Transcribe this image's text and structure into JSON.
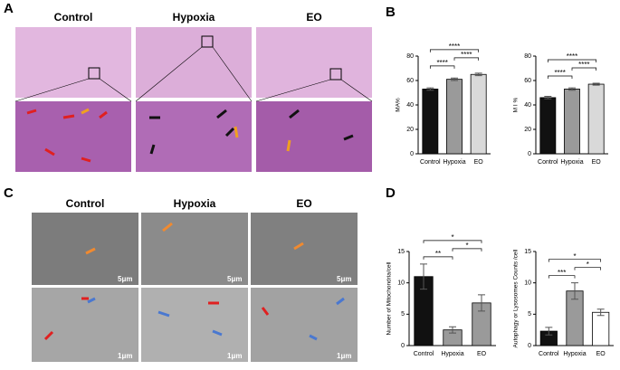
{
  "panel_labels": [
    "A",
    "B",
    "C",
    "D"
  ],
  "image_labels": {
    "a": [
      "Control",
      "Hypoxia",
      "EO"
    ],
    "c": [
      "Control",
      "Hypoxia",
      "EO"
    ]
  },
  "scale_labels": {
    "c_top": [
      "5μm",
      "5μm",
      "5μm"
    ],
    "c_bottom": [
      "1μm",
      "1μm",
      "1μm"
    ]
  },
  "chart_data": [
    {
      "type": "bar",
      "y_label": "MA%",
      "categories": [
        "Control",
        "Hypoxia",
        "EO"
      ],
      "values": [
        53,
        61,
        65
      ],
      "errors": [
        1,
        1,
        1
      ],
      "colors": [
        "#111111",
        "#9a9a9a",
        "#d9d9d9"
      ],
      "ylim": [
        0,
        80
      ],
      "yticks": [
        0,
        20,
        40,
        60,
        80
      ],
      "annotations": [
        {
          "label": "****",
          "between": [
            "Control",
            "Hypoxia"
          ]
        },
        {
          "label": "****",
          "between": [
            "Hypoxia",
            "EO"
          ]
        },
        {
          "label": "****",
          "between": [
            "Control",
            "EO"
          ]
        }
      ]
    },
    {
      "type": "bar",
      "y_label": "M I %",
      "categories": [
        "Control",
        "Hypoxia",
        "EO"
      ],
      "values": [
        46,
        53,
        57
      ],
      "errors": [
        1,
        1,
        0.8
      ],
      "colors": [
        "#111111",
        "#9a9a9a",
        "#d9d9d9"
      ],
      "ylim": [
        0,
        80
      ],
      "yticks": [
        0,
        20,
        40,
        60,
        80
      ],
      "annotations": [
        {
          "label": "****",
          "between": [
            "Control",
            "Hypoxia"
          ]
        },
        {
          "label": "****",
          "between": [
            "Hypoxia",
            "EO"
          ]
        },
        {
          "label": "****",
          "between": [
            "Control",
            "EO"
          ]
        }
      ]
    },
    {
      "type": "bar",
      "y_label": "Number of Mitochondria/cell",
      "categories": [
        "Control",
        "Hypoxia",
        "EO"
      ],
      "values": [
        11,
        2.5,
        6.8
      ],
      "errors": [
        2,
        0.5,
        1.3
      ],
      "colors": [
        "#111111",
        "#9a9a9a",
        "#9a9a9a"
      ],
      "ylim": [
        0,
        15
      ],
      "yticks": [
        0,
        5,
        10,
        15
      ],
      "annotations": [
        {
          "label": "**",
          "between": [
            "Control",
            "Hypoxia"
          ]
        },
        {
          "label": "*",
          "between": [
            "Hypoxia",
            "EO"
          ]
        },
        {
          "label": "*",
          "between": [
            "Control",
            "EO"
          ]
        }
      ]
    },
    {
      "type": "bar",
      "y_label": "Autophagy or Lysosomes Counts /cell",
      "categories": [
        "Control",
        "Hypoxia",
        "EO"
      ],
      "values": [
        2.3,
        8.7,
        5.3
      ],
      "errors": [
        0.6,
        1.3,
        0.5
      ],
      "colors": [
        "#111111",
        "#9a9a9a",
        "#ffffff"
      ],
      "ylim": [
        0,
        15
      ],
      "yticks": [
        0,
        5,
        10,
        15
      ],
      "annotations": [
        {
          "label": "***",
          "between": [
            "Control",
            "Hypoxia"
          ]
        },
        {
          "label": "*",
          "between": [
            "Hypoxia",
            "EO"
          ]
        },
        {
          "label": "*",
          "between": [
            "Control",
            "EO"
          ]
        }
      ]
    }
  ]
}
